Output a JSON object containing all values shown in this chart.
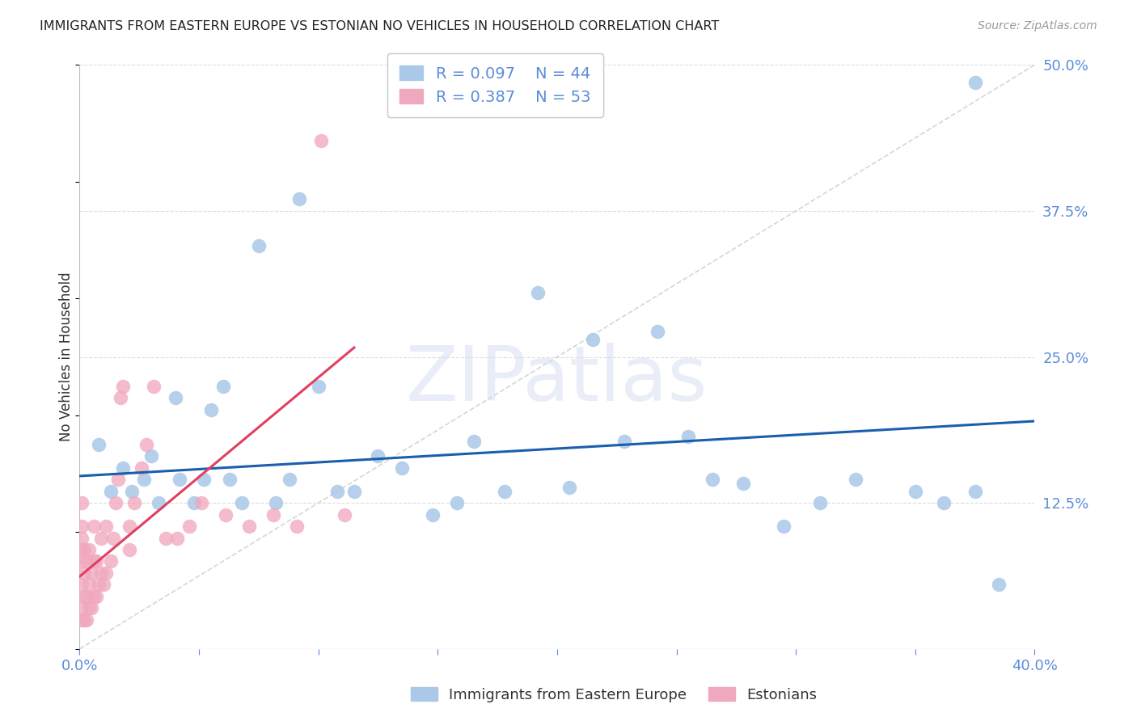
{
  "title": "IMMIGRANTS FROM EASTERN EUROPE VS ESTONIAN NO VEHICLES IN HOUSEHOLD CORRELATION CHART",
  "source": "Source: ZipAtlas.com",
  "ylabel": "No Vehicles in Household",
  "xlim": [
    0.0,
    0.4
  ],
  "ylim": [
    0.0,
    0.5
  ],
  "xticks": [
    0.0,
    0.05,
    0.1,
    0.15,
    0.2,
    0.25,
    0.3,
    0.35,
    0.4
  ],
  "xtick_labels_show": {
    "0.0": "0.0%",
    "0.40": "40.0%"
  },
  "yticks": [
    0.0,
    0.125,
    0.25,
    0.375,
    0.5
  ],
  "ytick_labels": [
    "",
    "12.5%",
    "25.0%",
    "37.5%",
    "50.0%"
  ],
  "legend_r_blue": "0.097",
  "legend_n_blue": "44",
  "legend_r_pink": "0.387",
  "legend_n_pink": "53",
  "legend_label_blue": "Immigrants from Eastern Europe",
  "legend_label_pink": "Estonians",
  "blue_color": "#aac8e8",
  "pink_color": "#f0a8be",
  "trend_blue_color": "#1a5fac",
  "trend_pink_color": "#e04060",
  "axis_tick_color": "#5b8dd9",
  "grid_color": "#dddddd",
  "watermark": "ZIPatlas",
  "blue_scatter_x": [
    0.008,
    0.013,
    0.018,
    0.022,
    0.027,
    0.03,
    0.033,
    0.04,
    0.042,
    0.048,
    0.052,
    0.055,
    0.06,
    0.063,
    0.068,
    0.075,
    0.082,
    0.088,
    0.092,
    0.1,
    0.108,
    0.115,
    0.125,
    0.135,
    0.148,
    0.158,
    0.165,
    0.178,
    0.192,
    0.205,
    0.215,
    0.228,
    0.242,
    0.255,
    0.265,
    0.278,
    0.295,
    0.31,
    0.325,
    0.35,
    0.362,
    0.375,
    0.385,
    0.375
  ],
  "blue_scatter_y": [
    0.175,
    0.135,
    0.155,
    0.135,
    0.145,
    0.165,
    0.125,
    0.215,
    0.145,
    0.125,
    0.145,
    0.205,
    0.225,
    0.145,
    0.125,
    0.345,
    0.125,
    0.145,
    0.385,
    0.225,
    0.135,
    0.135,
    0.165,
    0.155,
    0.115,
    0.125,
    0.178,
    0.135,
    0.305,
    0.138,
    0.265,
    0.178,
    0.272,
    0.182,
    0.145,
    0.142,
    0.105,
    0.125,
    0.145,
    0.135,
    0.125,
    0.135,
    0.055,
    0.485
  ],
  "pink_scatter_x": [
    0.001,
    0.001,
    0.001,
    0.001,
    0.001,
    0.001,
    0.001,
    0.001,
    0.002,
    0.002,
    0.002,
    0.002,
    0.003,
    0.003,
    0.003,
    0.004,
    0.004,
    0.004,
    0.005,
    0.005,
    0.006,
    0.006,
    0.006,
    0.007,
    0.007,
    0.008,
    0.009,
    0.009,
    0.01,
    0.011,
    0.011,
    0.013,
    0.014,
    0.015,
    0.016,
    0.017,
    0.018,
    0.021,
    0.021,
    0.023,
    0.026,
    0.028,
    0.031,
    0.036,
    0.041,
    0.046,
    0.051,
    0.061,
    0.071,
    0.081,
    0.091,
    0.101,
    0.111
  ],
  "pink_scatter_y": [
    0.025,
    0.035,
    0.055,
    0.075,
    0.085,
    0.095,
    0.105,
    0.125,
    0.025,
    0.045,
    0.065,
    0.085,
    0.025,
    0.045,
    0.075,
    0.035,
    0.055,
    0.085,
    0.035,
    0.065,
    0.045,
    0.075,
    0.105,
    0.045,
    0.075,
    0.055,
    0.065,
    0.095,
    0.055,
    0.065,
    0.105,
    0.075,
    0.095,
    0.125,
    0.145,
    0.215,
    0.225,
    0.085,
    0.105,
    0.125,
    0.155,
    0.175,
    0.225,
    0.095,
    0.095,
    0.105,
    0.125,
    0.115,
    0.105,
    0.115,
    0.105,
    0.435,
    0.115
  ],
  "blue_trend_x": [
    0.0,
    0.4
  ],
  "blue_trend_y": [
    0.148,
    0.195
  ],
  "pink_trend_x": [
    0.0,
    0.115
  ],
  "pink_trend_y": [
    0.062,
    0.258
  ],
  "diag_line_x": [
    0.0,
    0.4
  ],
  "diag_line_y": [
    0.0,
    0.5
  ]
}
